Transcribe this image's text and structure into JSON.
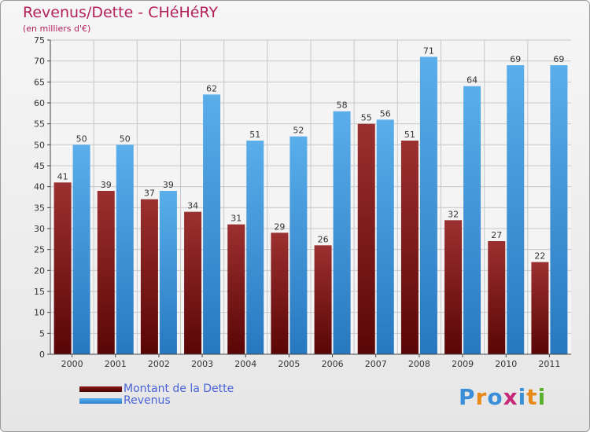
{
  "chart_data": {
    "type": "bar",
    "title": "Revenus/Dette - CHéHéRY",
    "subtitle": "(en milliers d'€)",
    "categories": [
      "2000",
      "2001",
      "2002",
      "2003",
      "2004",
      "2005",
      "2006",
      "2007",
      "2008",
      "2009",
      "2010",
      "2011"
    ],
    "series": [
      {
        "name": "Montant de la Dette",
        "color": "#8b1a1a",
        "values": [
          41,
          39,
          37,
          34,
          31,
          29,
          26,
          55,
          51,
          32,
          27,
          22
        ]
      },
      {
        "name": "Revenus",
        "color": "#4a9fe0",
        "values": [
          50,
          50,
          39,
          62,
          51,
          52,
          58,
          56,
          71,
          64,
          69,
          69
        ]
      }
    ],
    "ylim": [
      0,
      75
    ],
    "yticks": [
      0,
      5,
      10,
      15,
      20,
      25,
      30,
      35,
      40,
      45,
      50,
      55,
      60,
      65,
      70,
      75
    ],
    "grid": true,
    "legend": "bottom-left"
  },
  "logo": {
    "letters": [
      "P",
      "r",
      "o",
      "x",
      "i",
      "t",
      "i"
    ],
    "colors": [
      "#3a8fd8",
      "#e88a1a",
      "#3a8fd8",
      "#c6287a",
      "#3a8fd8",
      "#e88a1a",
      "#5ab02a"
    ]
  }
}
